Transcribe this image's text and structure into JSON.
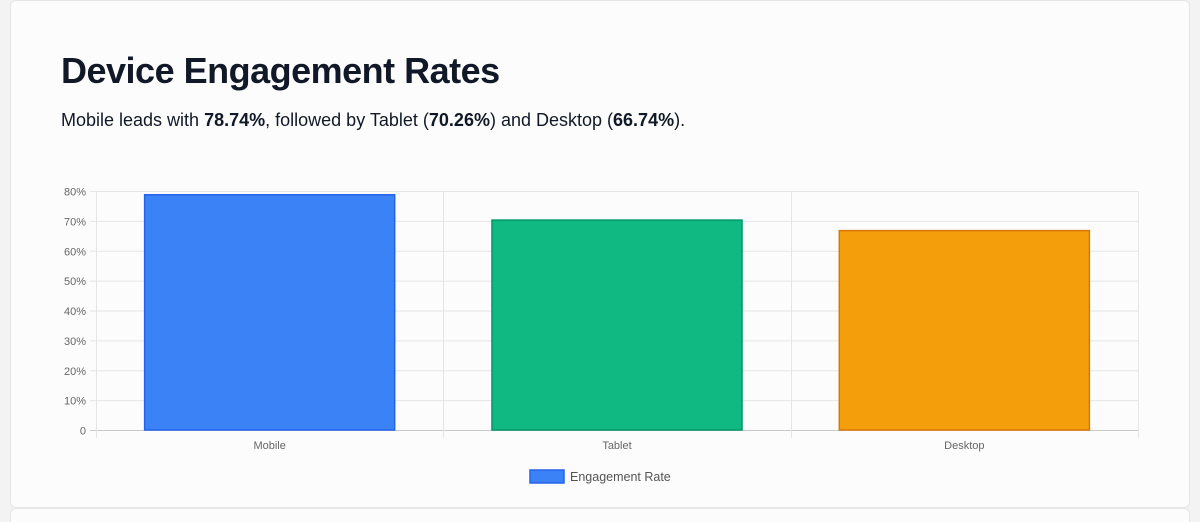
{
  "header": {
    "title": "Device Engagement Rates",
    "subtitle": {
      "prefix": "Mobile leads with ",
      "mobile_value": "78.74%",
      "middle1": ", followed by Tablet (",
      "tablet_value": "70.26%",
      "middle2": ") and Desktop (",
      "desktop_value": "66.74%",
      "suffix": ")."
    }
  },
  "chart_data": {
    "type": "bar",
    "title": "",
    "xlabel": "",
    "ylabel": "",
    "categories": [
      "Mobile",
      "Tablet",
      "Desktop"
    ],
    "series": [
      {
        "name": "Engagement Rate",
        "values": [
          78.74,
          70.26,
          66.74
        ],
        "colors": [
          "#3b82f6",
          "#10b981",
          "#f59e0b"
        ],
        "border_colors": [
          "#2563eb",
          "#059669",
          "#d97706"
        ]
      }
    ],
    "ylim": [
      0,
      80
    ],
    "y_ticks": [
      0,
      10,
      20,
      30,
      40,
      50,
      60,
      70,
      80
    ],
    "y_tick_labels": [
      "0",
      "10%",
      "20%",
      "30%",
      "40%",
      "50%",
      "60%",
      "70%",
      "80%"
    ],
    "grid": true,
    "legend": {
      "position": "bottom",
      "label": "Engagement Rate",
      "color": "#3b82f6",
      "border_color": "#2563eb"
    }
  }
}
